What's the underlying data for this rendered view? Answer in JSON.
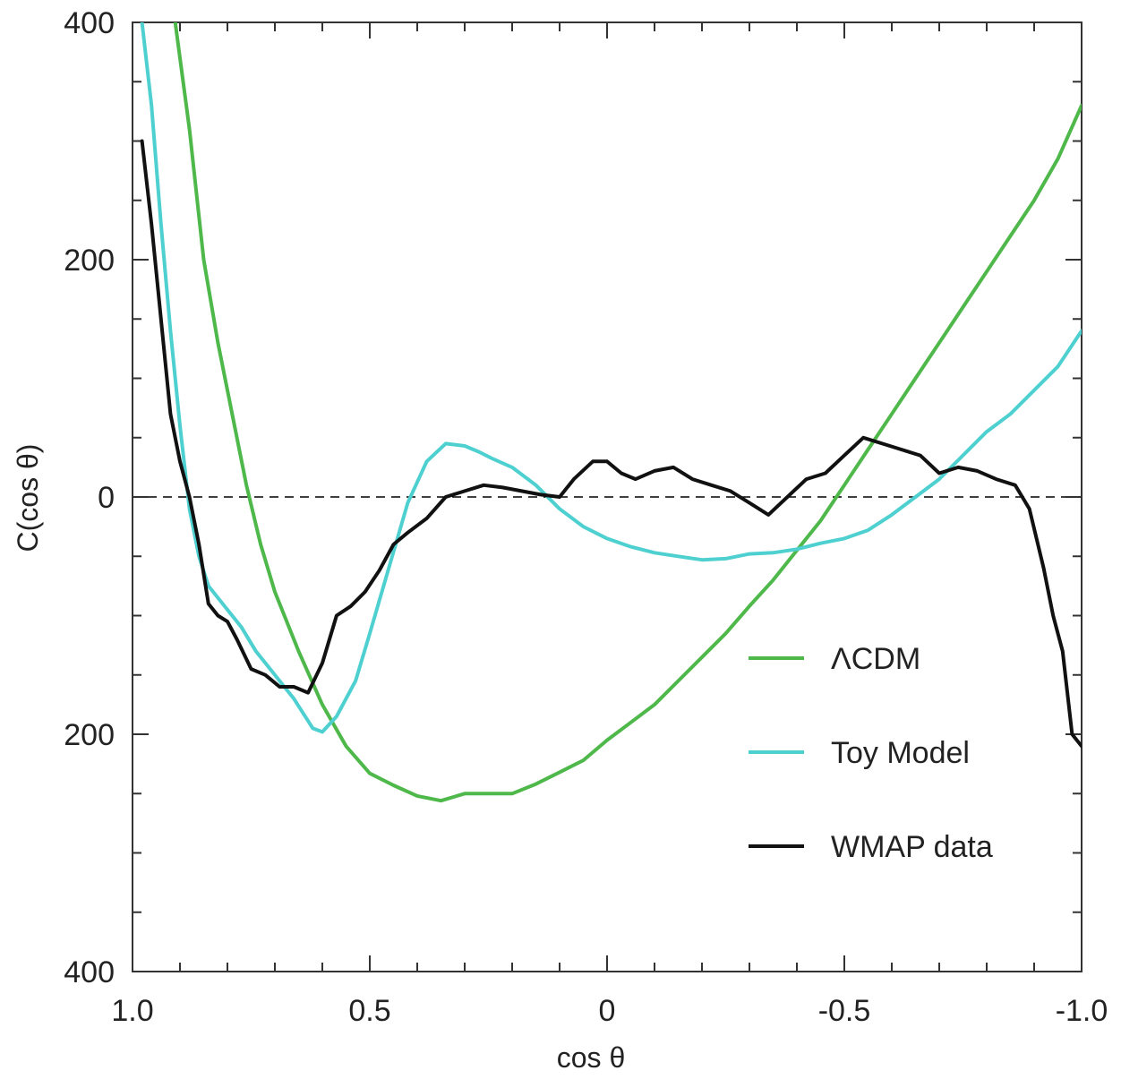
{
  "chart_data": {
    "type": "line",
    "title": "",
    "xlabel": "cos θ",
    "ylabel": "C(cos θ)",
    "xlim": [
      1.0,
      -1.0
    ],
    "ylim": [
      -400,
      400
    ],
    "x_ticks": [
      {
        "value": 1.0,
        "label": "1.0"
      },
      {
        "value": 0.5,
        "label": "0.5"
      },
      {
        "value": 0,
        "label": "0"
      },
      {
        "value": -0.5,
        "label": "-0.5"
      },
      {
        "value": -1.0,
        "label": "-1.0"
      }
    ],
    "y_ticks": [
      {
        "value": 400,
        "label": "400"
      },
      {
        "value": 200,
        "label": "200"
      },
      {
        "value": 0,
        "label": "0"
      },
      {
        "value": -200,
        "label": "200"
      },
      {
        "value": -400,
        "label": "400"
      }
    ],
    "zero_line": "dashed",
    "grid": false,
    "legend_position": "lower-right",
    "series": [
      {
        "name": "ΛCDM",
        "color": "#4fb84a",
        "x": [
          0.91,
          0.88,
          0.85,
          0.82,
          0.79,
          0.76,
          0.73,
          0.7,
          0.65,
          0.6,
          0.55,
          0.5,
          0.45,
          0.4,
          0.35,
          0.3,
          0.25,
          0.2,
          0.15,
          0.1,
          0.05,
          0.0,
          -0.05,
          -0.1,
          -0.15,
          -0.2,
          -0.25,
          -0.3,
          -0.35,
          -0.4,
          -0.45,
          -0.5,
          -0.55,
          -0.6,
          -0.65,
          -0.7,
          -0.75,
          -0.8,
          -0.85,
          -0.9,
          -0.95,
          -1.0
        ],
        "y": [
          400,
          310,
          200,
          130,
          70,
          10,
          -40,
          -80,
          -130,
          -175,
          -210,
          -233,
          -243,
          -252,
          -256,
          -250,
          -250,
          -250,
          -242,
          -232,
          -222,
          -205,
          -190,
          -175,
          -155,
          -135,
          -115,
          -92,
          -70,
          -45,
          -20,
          10,
          40,
          70,
          100,
          130,
          160,
          190,
          220,
          250,
          285,
          330
        ]
      },
      {
        "name": "Toy Model",
        "color": "#4fd0d0",
        "x": [
          0.98,
          0.96,
          0.94,
          0.92,
          0.9,
          0.88,
          0.86,
          0.84,
          0.82,
          0.8,
          0.77,
          0.74,
          0.7,
          0.66,
          0.62,
          0.6,
          0.57,
          0.53,
          0.5,
          0.46,
          0.42,
          0.38,
          0.34,
          0.3,
          0.27,
          0.24,
          0.2,
          0.15,
          0.1,
          0.05,
          0.0,
          -0.05,
          -0.1,
          -0.15,
          -0.2,
          -0.25,
          -0.3,
          -0.35,
          -0.4,
          -0.45,
          -0.5,
          -0.55,
          -0.6,
          -0.65,
          -0.7,
          -0.75,
          -0.8,
          -0.85,
          -0.9,
          -0.95,
          -1.0
        ],
        "y": [
          400,
          330,
          230,
          140,
          60,
          -10,
          -50,
          -75,
          -85,
          -95,
          -110,
          -130,
          -150,
          -170,
          -195,
          -198,
          -185,
          -155,
          -115,
          -60,
          -5,
          30,
          45,
          43,
          38,
          32,
          25,
          10,
          -10,
          -25,
          -35,
          -42,
          -47,
          -50,
          -53,
          -52,
          -48,
          -47,
          -44,
          -39,
          -35,
          -28,
          -15,
          0,
          15,
          35,
          55,
          70,
          90,
          110,
          140
        ]
      },
      {
        "name": "WMAP data",
        "color": "#111111",
        "x": [
          0.98,
          0.96,
          0.94,
          0.92,
          0.9,
          0.88,
          0.86,
          0.84,
          0.82,
          0.8,
          0.78,
          0.75,
          0.72,
          0.69,
          0.66,
          0.63,
          0.6,
          0.57,
          0.54,
          0.51,
          0.48,
          0.45,
          0.42,
          0.38,
          0.34,
          0.3,
          0.26,
          0.22,
          0.18,
          0.14,
          0.1,
          0.07,
          0.03,
          0.0,
          -0.03,
          -0.06,
          -0.1,
          -0.14,
          -0.18,
          -0.22,
          -0.26,
          -0.3,
          -0.34,
          -0.38,
          -0.42,
          -0.46,
          -0.5,
          -0.54,
          -0.58,
          -0.62,
          -0.66,
          -0.7,
          -0.74,
          -0.78,
          -0.82,
          -0.86,
          -0.89,
          -0.92,
          -0.94,
          -0.96,
          -0.98,
          -1.0
        ],
        "y": [
          300,
          230,
          150,
          70,
          30,
          0,
          -40,
          -90,
          -100,
          -105,
          -120,
          -145,
          -150,
          -160,
          -160,
          -165,
          -140,
          -100,
          -92,
          -80,
          -62,
          -40,
          -30,
          -18,
          0,
          5,
          10,
          8,
          5,
          2,
          0,
          15,
          30,
          30,
          20,
          15,
          22,
          25,
          15,
          10,
          5,
          -5,
          -15,
          0,
          15,
          20,
          35,
          50,
          45,
          40,
          35,
          20,
          25,
          22,
          15,
          10,
          -10,
          -60,
          -100,
          -130,
          -200,
          -210
        ]
      }
    ]
  }
}
